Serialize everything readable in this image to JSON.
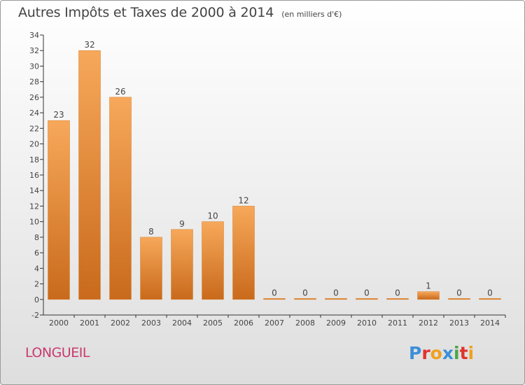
{
  "header": {
    "title": "Autres Impôts et Taxes de 2000 à 2014",
    "unit": "(en milliers d'€)"
  },
  "footer": {
    "commune": "LONGUEIL",
    "logo": "Proxiti",
    "logo_colors": [
      "#3d8fd8",
      "#e0332e",
      "#f0a020",
      "#3d8fd8",
      "#4aa64a",
      "#e0332e",
      "#f0a020"
    ]
  },
  "colors": {
    "bar_top": "#f7a85a",
    "bar_bottom": "#c96a1c",
    "axis": "#333333",
    "text": "#444444",
    "commune": "#c83a6e"
  },
  "chart_data": {
    "type": "bar",
    "title": "Autres Impôts et Taxes de 2000 à 2014",
    "subtitle": "(en milliers d'€)",
    "categories": [
      "2000",
      "2001",
      "2002",
      "2003",
      "2004",
      "2005",
      "2006",
      "2007",
      "2008",
      "2009",
      "2010",
      "2011",
      "2012",
      "2013",
      "2014"
    ],
    "values": [
      23,
      32,
      26,
      8,
      9,
      10,
      12,
      0,
      0,
      0,
      0,
      0,
      1,
      0,
      0
    ],
    "data_labels": [
      "23",
      "32",
      "26",
      "8",
      "9",
      "10",
      "12",
      "0",
      "0",
      "0",
      "0",
      "0",
      "1",
      "0",
      "0"
    ],
    "ylim": [
      -2,
      34
    ],
    "yticks": [
      -2,
      0,
      2,
      4,
      6,
      8,
      10,
      12,
      14,
      16,
      18,
      20,
      22,
      24,
      26,
      28,
      30,
      32,
      34
    ],
    "xlabel": "",
    "ylabel": "",
    "grid": false,
    "legend": "none"
  }
}
